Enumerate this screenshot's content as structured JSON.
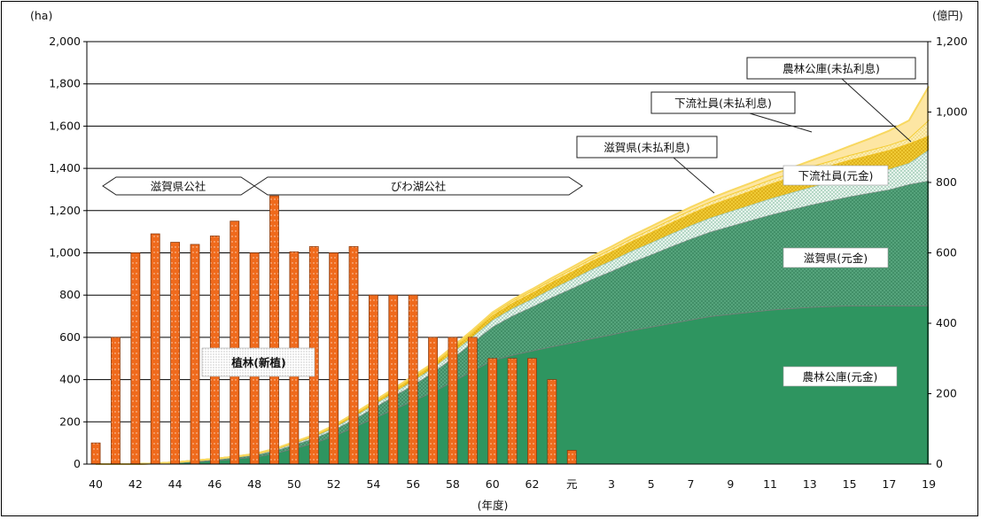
{
  "chart_data": {
    "type": "bar+area",
    "left_unit": "(ha)",
    "right_unit": "(億円)",
    "xlabel": "(年度)",
    "left_ylim": [
      0,
      2000
    ],
    "left_yticks": [
      0,
      200,
      400,
      600,
      800,
      1000,
      1200,
      1400,
      1600,
      1800,
      2000
    ],
    "left_ytick_labels": [
      "0",
      "200",
      "400",
      "600",
      "800",
      "1,000",
      "1,200",
      "1,400",
      "1,600",
      "1,800",
      "2,000"
    ],
    "right_ylim": [
      0,
      1200
    ],
    "right_yticks": [
      0,
      200,
      400,
      600,
      800,
      1000,
      1200
    ],
    "right_ytick_labels": [
      "0",
      "200",
      "400",
      "600",
      "800",
      "1,000",
      "1,200"
    ],
    "x_categories": [
      "40",
      "41",
      "42",
      "43",
      "44",
      "45",
      "46",
      "47",
      "48",
      "49",
      "50",
      "51",
      "52",
      "53",
      "54",
      "55",
      "56",
      "57",
      "58",
      "59",
      "60",
      "61",
      "62",
      "63",
      "元",
      "2",
      "3",
      "4",
      "5",
      "6",
      "7",
      "8",
      "9",
      "10",
      "11",
      "12",
      "13",
      "14",
      "15",
      "16",
      "17",
      "18",
      "19"
    ],
    "x_tick_labels": [
      "40",
      "42",
      "44",
      "46",
      "48",
      "50",
      "52",
      "54",
      "56",
      "58",
      "60",
      "62",
      "元",
      "3",
      "5",
      "7",
      "9",
      "11",
      "13",
      "15",
      "17",
      "19"
    ],
    "grid": true,
    "bars": {
      "name": "植林(新植)",
      "axis": "left",
      "values": [
        100,
        600,
        1000,
        1090,
        1050,
        1040,
        1080,
        1150,
        1000,
        1270,
        1005,
        1030,
        1000,
        1030,
        800,
        800,
        800,
        600,
        600,
        600,
        500,
        500,
        500,
        400,
        65
      ]
    },
    "area_series": [
      {
        "name": "農林公庫(元金)",
        "axis": "right",
        "color": "#2e9560",
        "values": [
          0,
          0,
          0,
          2,
          4,
          7,
          10,
          15,
          20,
          30,
          45,
          60,
          80,
          105,
          130,
          155,
          180,
          205,
          235,
          265,
          295,
          310,
          322,
          334,
          345,
          357,
          368,
          380,
          390,
          400,
          410,
          420,
          426,
          432,
          438,
          442,
          446,
          448,
          450,
          450,
          450,
          450,
          450
        ]
      },
      {
        "name": "滋賀県(元金)",
        "axis": "right",
        "color": "#74b895",
        "values": [
          0,
          0,
          0,
          0,
          1,
          2,
          3,
          4,
          5,
          7,
          10,
          13,
          17,
          22,
          29,
          37,
          45,
          55,
          67,
          80,
          95,
          111,
          125,
          140,
          154,
          168,
          180,
          193,
          205,
          218,
          230,
          240,
          250,
          260,
          270,
          280,
          290,
          300,
          310,
          320,
          330,
          345,
          355
        ]
      },
      {
        "name": "下流社員(元金)",
        "axis": "right",
        "color": "#d6ece0",
        "values": [
          0,
          0,
          0,
          0,
          0,
          1,
          1,
          1,
          2,
          3,
          4,
          5,
          6,
          8,
          9,
          10,
          12,
          13,
          15,
          17,
          19,
          21,
          22,
          24,
          26,
          28,
          30,
          32,
          34,
          36,
          38,
          40,
          42,
          44,
          46,
          48,
          50,
          52,
          54,
          56,
          58,
          60,
          88
        ]
      },
      {
        "name": "滋賀県(未払利息)",
        "axis": "right",
        "color": "#f5d545",
        "values": [
          0,
          0,
          0,
          0,
          0,
          0,
          1,
          1,
          1,
          2,
          2,
          3,
          4,
          5,
          6,
          7,
          8,
          9,
          10,
          12,
          14,
          16,
          18,
          20,
          22,
          24,
          26,
          28,
          30,
          32,
          34,
          36,
          38,
          40,
          42,
          44,
          46,
          48,
          50,
          52,
          54,
          56,
          40
        ]
      },
      {
        "name": "下流社員(未払利息)",
        "axis": "right",
        "color": "#fbe99a",
        "values": [
          0,
          0,
          0,
          0,
          0,
          0,
          0,
          0,
          1,
          1,
          1,
          1,
          2,
          2,
          2,
          3,
          3,
          3,
          4,
          4,
          5,
          5,
          6,
          6,
          7,
          7,
          8,
          8,
          9,
          9,
          10,
          10,
          11,
          11,
          12,
          12,
          13,
          13,
          14,
          14,
          15,
          15,
          45
        ]
      },
      {
        "name": "農林公庫(未払利息)",
        "axis": "right",
        "color": "#fdf3c8",
        "values": [
          0,
          0,
          0,
          0,
          0,
          0,
          0,
          0,
          0,
          0,
          1,
          1,
          1,
          1,
          2,
          2,
          2,
          2,
          3,
          3,
          3,
          4,
          4,
          5,
          5,
          6,
          6,
          7,
          7,
          8,
          8,
          9,
          10,
          11,
          12,
          14,
          16,
          20,
          25,
          32,
          40,
          50,
          95
        ]
      }
    ],
    "phase_labels": [
      "滋賀県公社",
      "びわ湖公社"
    ]
  }
}
